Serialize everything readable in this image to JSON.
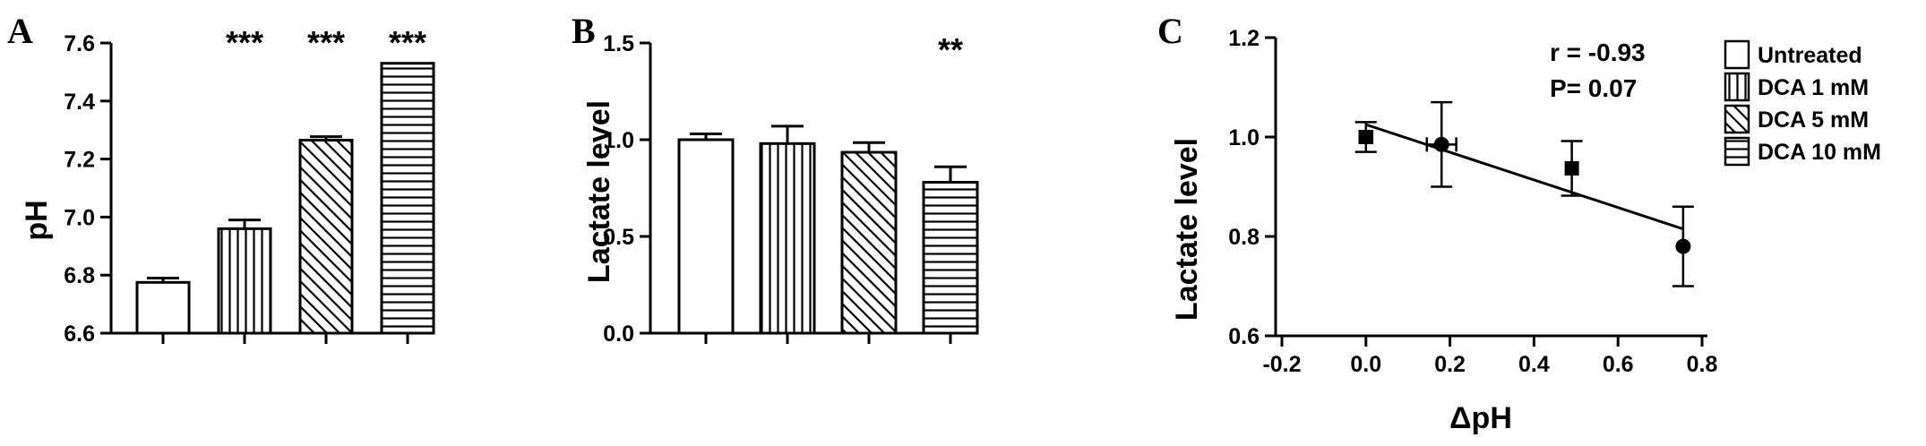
{
  "colors": {
    "ink": "#000000",
    "background": "#ffffff"
  },
  "legend": {
    "placement": "right",
    "items": [
      {
        "label": "Untreated",
        "pattern": "none"
      },
      {
        "label": "DCA 1 mM",
        "pattern": "vertical"
      },
      {
        "label": "DCA 5 mM",
        "pattern": "diagonal"
      },
      {
        "label": "DCA 10 mM",
        "pattern": "horizontal"
      }
    ]
  },
  "chart_data": [
    {
      "panel": "A",
      "type": "bar",
      "ylabel": "pH",
      "ylim": [
        6.6,
        7.6
      ],
      "yticks": [
        "6.6",
        "6.8",
        "7.0",
        "7.2",
        "7.4",
        "7.6"
      ],
      "categories": [
        "Untreated",
        "DCA 1 mM",
        "DCA 5 mM",
        "DCA 10 mM"
      ],
      "values": [
        6.775,
        6.96,
        7.265,
        7.53
      ],
      "errors": [
        0.015,
        0.03,
        0.012,
        0.0
      ],
      "annotations": [
        "",
        "***",
        "***",
        "***"
      ],
      "grid": false
    },
    {
      "panel": "B",
      "type": "bar",
      "ylabel": "Lactate level",
      "ylim": [
        0.0,
        1.5
      ],
      "yticks": [
        "0.0",
        "0.5",
        "1.0",
        "1.5"
      ],
      "categories": [
        "Untreated",
        "DCA 1 mM",
        "DCA 5 mM",
        "DCA 10 mM"
      ],
      "values": [
        1.0,
        0.98,
        0.935,
        0.78
      ],
      "errors": [
        0.03,
        0.09,
        0.05,
        0.08
      ],
      "annotations": [
        "",
        "",
        "",
        "**"
      ],
      "grid": false
    },
    {
      "panel": "C",
      "type": "scatter",
      "xlabel": "ΔpH",
      "ylabel": "Lactate level",
      "xlim": [
        -0.2,
        0.8
      ],
      "ylim": [
        0.6,
        1.2
      ],
      "xticks": [
        "-0.2",
        "0.0",
        "0.2",
        "0.4",
        "0.6",
        "0.8"
      ],
      "yticks": [
        "0.6",
        "0.8",
        "1.0",
        "1.2"
      ],
      "points": [
        {
          "x": 0.0,
          "y": 1.0,
          "xerr": 0.015,
          "yerr": 0.03,
          "marker": "square"
        },
        {
          "x": 0.18,
          "y": 0.985,
          "xerr": 0.035,
          "yerr": 0.085,
          "marker": "circle"
        },
        {
          "x": 0.49,
          "y": 0.937,
          "xerr": 0.012,
          "yerr": 0.055,
          "marker": "square"
        },
        {
          "x": 0.755,
          "y": 0.78,
          "xerr": 0.0,
          "yerr": 0.08,
          "marker": "circle"
        }
      ],
      "fit_line": {
        "x": [
          0.0,
          0.755
        ],
        "y": [
          1.025,
          0.815
        ]
      },
      "stats": [
        "r = -0.93",
        "P= 0.07"
      ],
      "grid": false
    }
  ]
}
